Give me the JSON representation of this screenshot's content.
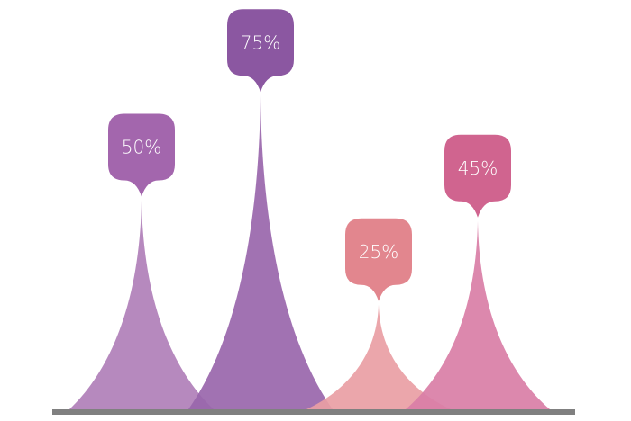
{
  "chart_data": {
    "type": "bar",
    "style": "spike infographic with callout bubbles",
    "categories": [
      "",
      "",
      "",
      ""
    ],
    "values": [
      50,
      75,
      25,
      45
    ],
    "data_labels": [
      "50%",
      "75%",
      "25%",
      "45%"
    ],
    "ylim": [
      0,
      100
    ],
    "grid": false,
    "colors": {
      "spikes": [
        "#b07fb9",
        "#9966ab",
        "#e99ea4",
        "#d97ea6"
      ],
      "bubbles": [
        "#a366ad",
        "#8b57a1",
        "#e2868e",
        "#d0648f"
      ],
      "baseline": "#808080"
    }
  }
}
